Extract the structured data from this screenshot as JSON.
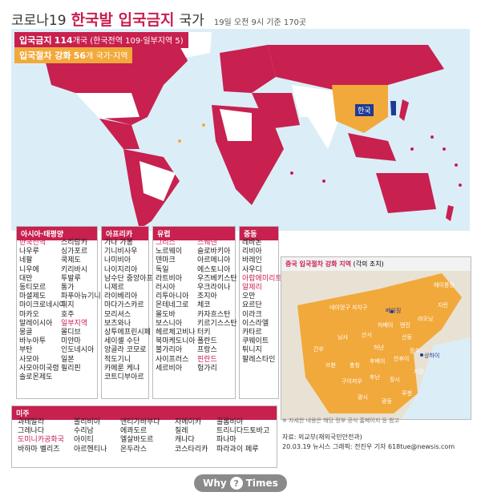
{
  "title": {
    "part1": "코로나19",
    "part2": "한국발 입국금지",
    "part3": "국가",
    "note": "19일 오전 9시 기준 170곳"
  },
  "legend": {
    "ban_label": "입국금지",
    "ban_count": "114",
    "ban_detail": "개국 (한국전역 109·일부지역 5)",
    "strengthen_label": "입국절차 강화",
    "strengthen_count": "56",
    "strengthen_detail": "개 국가·지역"
  },
  "korea_badge": "한국",
  "colors": {
    "ban": "#c8204f",
    "strengthen": "#f2a93b",
    "ocean": "#dbeef7",
    "land": "#ffffff",
    "korea": "#1f3a93"
  },
  "regions": {
    "asia": {
      "header": "아시아·태평양",
      "col1": [
        "한국전역",
        "나우루",
        "네팔",
        "니우에",
        "대만",
        "동티모르",
        "마셜제도",
        "마이크로네시아",
        "마카오",
        "말레이시아",
        "몽골",
        "바누아투",
        "부탄",
        "사모아",
        "사모아미국령",
        "솔로몬제도"
      ],
      "col2": [
        "스리랑카",
        "싱가포르",
        "쿡제도",
        "키리바시",
        "투발루",
        "통가",
        "파푸아뉴기니",
        "피지",
        "호주",
        "일부지역",
        "몰디브",
        "미얀마",
        "인도네시아",
        "일본",
        "필리핀"
      ]
    },
    "africa": {
      "header": "아프리카",
      "col1": [
        "가나",
        "기니비사우",
        "나미비아",
        "나이지리아",
        "남수단",
        "니제르",
        "라이베리아",
        "마다가스카르",
        "모리셔스",
        "보츠와나",
        "상투메프린시페",
        "세이셸",
        "앙골라",
        "적도기니",
        "카메룬",
        "코트디부아르"
      ],
      "col2": [
        "가봉",
        "",
        "",
        "",
        "중앙아프리카공화국",
        "",
        "",
        "",
        "",
        "",
        "",
        "수단",
        "코모로",
        "",
        "케냐",
        ""
      ]
    },
    "europe": {
      "header": "유럽",
      "col1": [
        "그리스",
        "노르웨이",
        "덴마크",
        "독일",
        "라트비아",
        "러시아",
        "리투아니아",
        "몬테네그로",
        "몰도바",
        "보스니아",
        "헤르체고비나",
        "북마케도니아",
        "불가리아",
        "사이프러스",
        "세르비아"
      ],
      "col2": [
        "스웨덴",
        "슬로바키아",
        "아르메니아",
        "에스토니아",
        "우즈베키스탄",
        "우크라이나",
        "조지아",
        "체코",
        "카자흐스탄",
        "키르기스스탄",
        "터키",
        "폴란드",
        "프랑스",
        "핀란드",
        "헝가리"
      ]
    },
    "mideast": {
      "header": "중동",
      "col1": [
        "레바논",
        "리비아",
        "바레인",
        "사우디",
        "아랍에미리트",
        "알제리",
        "오만",
        "요르단",
        "이라크",
        "이스라엘",
        "카타르",
        "쿠웨이트",
        "튀니지",
        "팔레스타인"
      ]
    },
    "america": {
      "header": "미주",
      "col1": [
        "과테말라",
        "그레나다",
        "도미니카공화국",
        "바하마 벨리즈"
      ],
      "col2": [
        "볼리비아",
        "수리남",
        "아이티",
        "아르헨티나"
      ],
      "col3": [
        "앤티가바부다",
        "에콰도르",
        "엘살바도르",
        "온두라스"
      ],
      "col4": [
        "자메이카",
        "칠레",
        "캐나다",
        "코스타리카"
      ],
      "col5": [
        "콜롬비아",
        "트리니다드토바고",
        "파나마",
        "파라과이 페루"
      ]
    }
  },
  "china_inset": {
    "title": "중국 입국절차 강화 지역",
    "title_note": "(각의 조치)",
    "provinces": [
      "헤이룽장",
      "지린",
      "랴오닝",
      "네이멍구 자치구",
      "베이징",
      "톈진",
      "허베이",
      "산시",
      "닝샤",
      "간쑤",
      "산둥",
      "허난",
      "장쑤",
      "상하이",
      "안후이",
      "후베이",
      "쓰촨",
      "충칭",
      "구이저우",
      "후난",
      "장시",
      "저장",
      "푸젠",
      "광시",
      "광둥"
    ]
  },
  "footer": {
    "note": "※ 자세한 내용은 해당 정부 공식 홈페이지 등 참고",
    "source": "자료: 외교부(재외국민안전과)",
    "credit": "20.03.19 뉴시스 그래픽: 전진우 기자 618tue@newsis.com",
    "logo_left": "Why",
    "logo_mid": "?",
    "logo_right": "Times"
  }
}
